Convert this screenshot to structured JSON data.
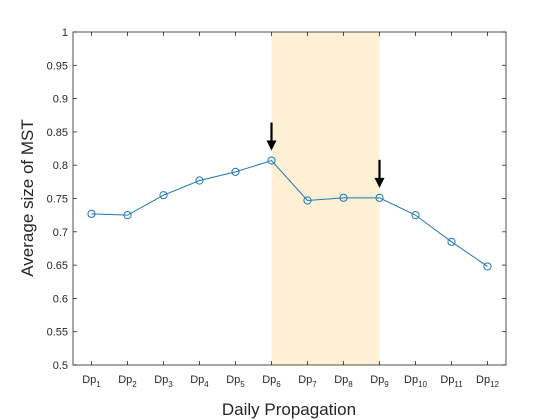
{
  "chart_data": {
    "type": "line",
    "xlabel": "Daily Propagation",
    "ylabel": "Average size of MST",
    "ylim": [
      0.5,
      1
    ],
    "yticks": [
      "0.5",
      "0.55",
      "0.6",
      "0.65",
      "0.7",
      "0.75",
      "0.8",
      "0.85",
      "0.9",
      "0.95",
      "1"
    ],
    "categories": [
      {
        "base": "Dp",
        "sub": "1"
      },
      {
        "base": "Dp",
        "sub": "2"
      },
      {
        "base": "Dp",
        "sub": "3"
      },
      {
        "base": "Dp",
        "sub": "4"
      },
      {
        "base": "Dp",
        "sub": "5"
      },
      {
        "base": "Dp",
        "sub": "6"
      },
      {
        "base": "Dp",
        "sub": "7"
      },
      {
        "base": "Dp",
        "sub": "8"
      },
      {
        "base": "Dp",
        "sub": "9"
      },
      {
        "base": "Dp",
        "sub": "10"
      },
      {
        "base": "Dp",
        "sub": "11"
      },
      {
        "base": "Dp",
        "sub": "12"
      }
    ],
    "series": [
      {
        "values": [
          0.727,
          0.725,
          0.755,
          0.777,
          0.79,
          0.807,
          0.747,
          0.751,
          0.751,
          0.725,
          0.685,
          0.648
        ]
      }
    ],
    "highlight_range": {
      "from_index": 5,
      "to_index": 8
    },
    "arrows_at_index": [
      5,
      8
    ],
    "colors": {
      "line": "#1f77b4",
      "highlight": "#fdf0d5",
      "axis": "#262626",
      "arrow": "#000000"
    },
    "grid": false,
    "box": true
  }
}
